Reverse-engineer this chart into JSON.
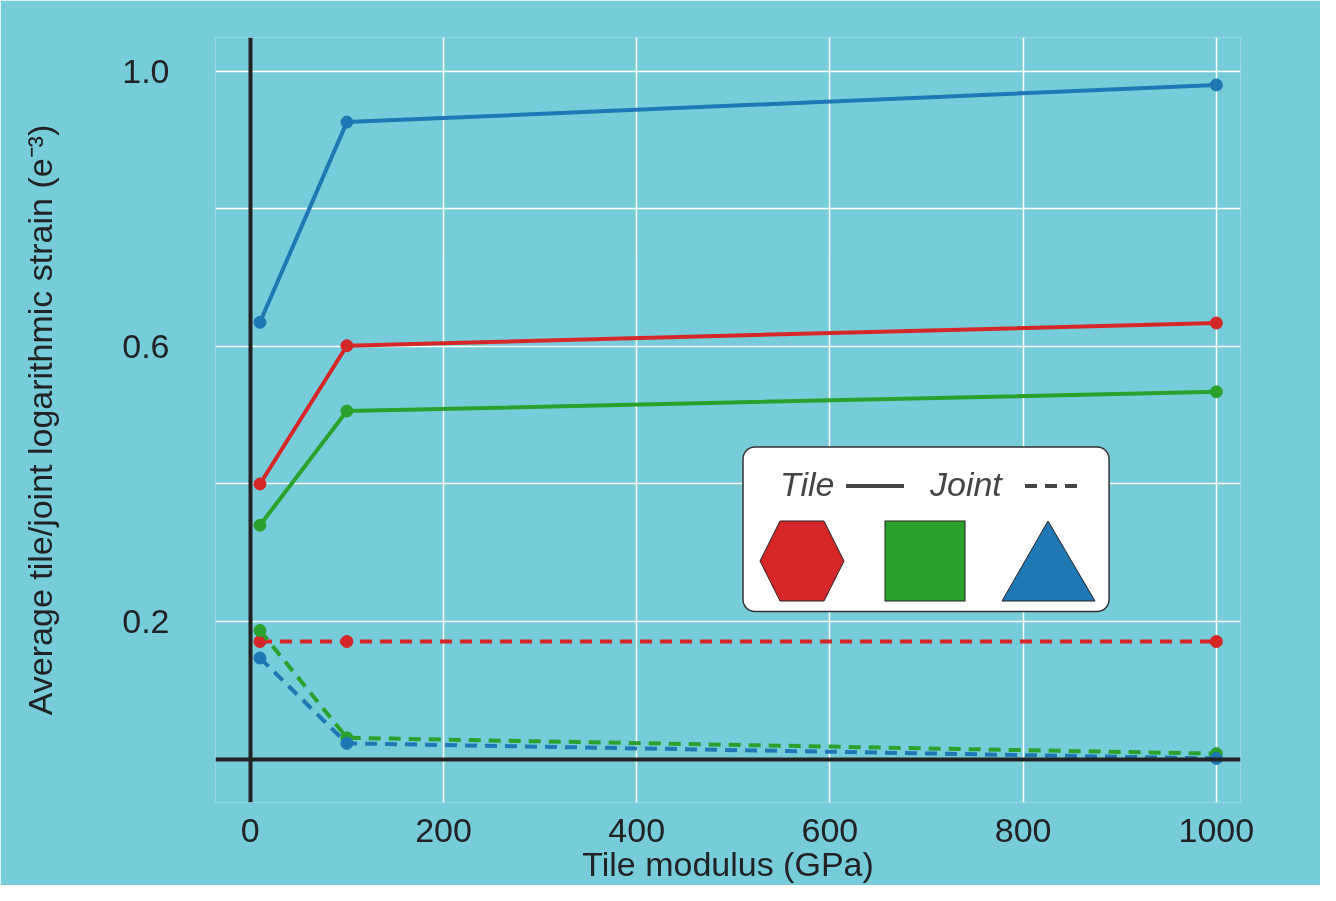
{
  "chart_data": {
    "type": "line",
    "xlabel": "Tile modulus (GPa)",
    "ylabel": "Average tile/joint logarithmic strain (e⁻³)",
    "x": [
      10,
      100,
      1000
    ],
    "series": [
      {
        "color": "#1f77b4",
        "values": [
          0.635,
          0.926,
          0.98
        ],
        "line_style": "solid"
      },
      {
        "color": "#d62728",
        "values": [
          0.4,
          0.601,
          0.634
        ],
        "line_style": "solid"
      },
      {
        "color": "#2ca02c",
        "values": [
          0.34,
          0.506,
          0.534
        ],
        "line_style": "solid"
      },
      {
        "color": "#d62728",
        "values": [
          0.171,
          0.171,
          0.171
        ],
        "line_style": "dashed"
      },
      {
        "color": "#2ca02c",
        "values": [
          0.187,
          0.031,
          0.008
        ],
        "line_style": "dashed"
      },
      {
        "color": "#1f77b4",
        "values": [
          0.147,
          0.023,
          0.001
        ],
        "line_style": "dashed"
      }
    ],
    "annotations": [
      "Tile",
      "Joint"
    ],
    "marker": "circle",
    "grid": true,
    "xlim": [
      -36,
      1025
    ],
    "ylim": [
      -0.063,
      1.049
    ],
    "xticks": [
      0,
      200,
      400,
      600,
      800,
      1000
    ],
    "yticks": [
      {
        "value": 0.2,
        "label": "0.2"
      },
      {
        "value": 0.4,
        "label": null
      },
      {
        "value": 0.6,
        "label": "0.6"
      },
      {
        "value": 0.8,
        "label": null
      },
      {
        "value": 1.0,
        "label": "1.0"
      }
    ]
  }
}
